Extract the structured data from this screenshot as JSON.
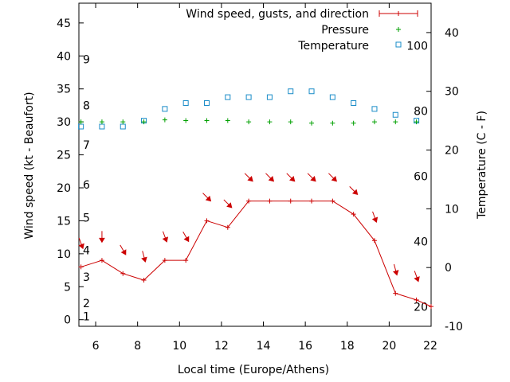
{
  "chart_data": {
    "type": "line",
    "xlabel": "Local time (Europe/Athens)",
    "ylabel_left": "Wind speed (kt - Beaufort)",
    "ylabel_right": "Temperature (C - F)",
    "xlim": [
      5.2,
      22
    ],
    "ylim_left": [
      -1,
      48
    ],
    "ylim_right": [
      -10,
      45
    ],
    "x_ticks": [
      "6",
      "8",
      "10",
      "12",
      "14",
      "16",
      "18",
      "20",
      "22"
    ],
    "y_ticks_left": [
      "0",
      "5",
      "10",
      "15",
      "20",
      "25",
      "30",
      "35",
      "40",
      "45"
    ],
    "y_ticks_right": [
      "-10",
      "0",
      "10",
      "20",
      "30",
      "40"
    ],
    "beaufort_labels": [
      "1",
      "2",
      "3",
      "4",
      "5",
      "6",
      "7",
      "8",
      "9"
    ],
    "fahrenheit_labels": [
      "20",
      "40",
      "60",
      "80",
      "100"
    ],
    "legend": {
      "wind": "Wind speed, gusts, and direction",
      "pressure": "Pressure",
      "temperature": "Temperature"
    },
    "series": [
      {
        "name": "Wind speed, gusts, and direction",
        "x": [
          5.3,
          6.3,
          7.3,
          8.3,
          9.3,
          10.3,
          11.3,
          12.3,
          13.3,
          14.3,
          15.3,
          16.3,
          17.3,
          18.3,
          19.3,
          20.3,
          21.3,
          22
        ],
        "values": [
          8,
          9,
          7,
          6,
          9,
          9,
          15,
          14,
          18,
          18,
          18,
          18,
          18,
          16,
          12,
          4,
          3,
          2
        ],
        "direction_deg": [
          20,
          0,
          30,
          15,
          20,
          30,
          45,
          45,
          45,
          45,
          45,
          45,
          45,
          45,
          20,
          15,
          20,
          null
        ],
        "color": "#cc0000"
      },
      {
        "name": "Pressure",
        "x": [
          5.3,
          6.3,
          7.3,
          8.3,
          9.3,
          10.3,
          11.3,
          12.3,
          13.3,
          14.3,
          15.3,
          16.3,
          17.3,
          18.3,
          19.3,
          20.3,
          21.3
        ],
        "values": [
          30,
          30,
          30,
          30,
          30.3,
          30.2,
          30.2,
          30.2,
          30,
          30,
          30,
          29.8,
          29.8,
          29.8,
          30,
          30,
          30
        ],
        "color": "#00a000"
      },
      {
        "name": "Temperature",
        "x": [
          5.3,
          6.3,
          7.3,
          8.3,
          9.3,
          10.3,
          11.3,
          12.3,
          13.3,
          14.3,
          15.3,
          16.3,
          17.3,
          18.3,
          19.3,
          20.3,
          21.3
        ],
        "values": [
          24,
          24,
          24,
          25,
          27,
          28,
          28,
          29,
          29,
          29,
          30,
          30,
          29,
          28,
          27,
          26,
          25
        ],
        "axis": "right",
        "color": "#1a8cc8"
      }
    ]
  }
}
